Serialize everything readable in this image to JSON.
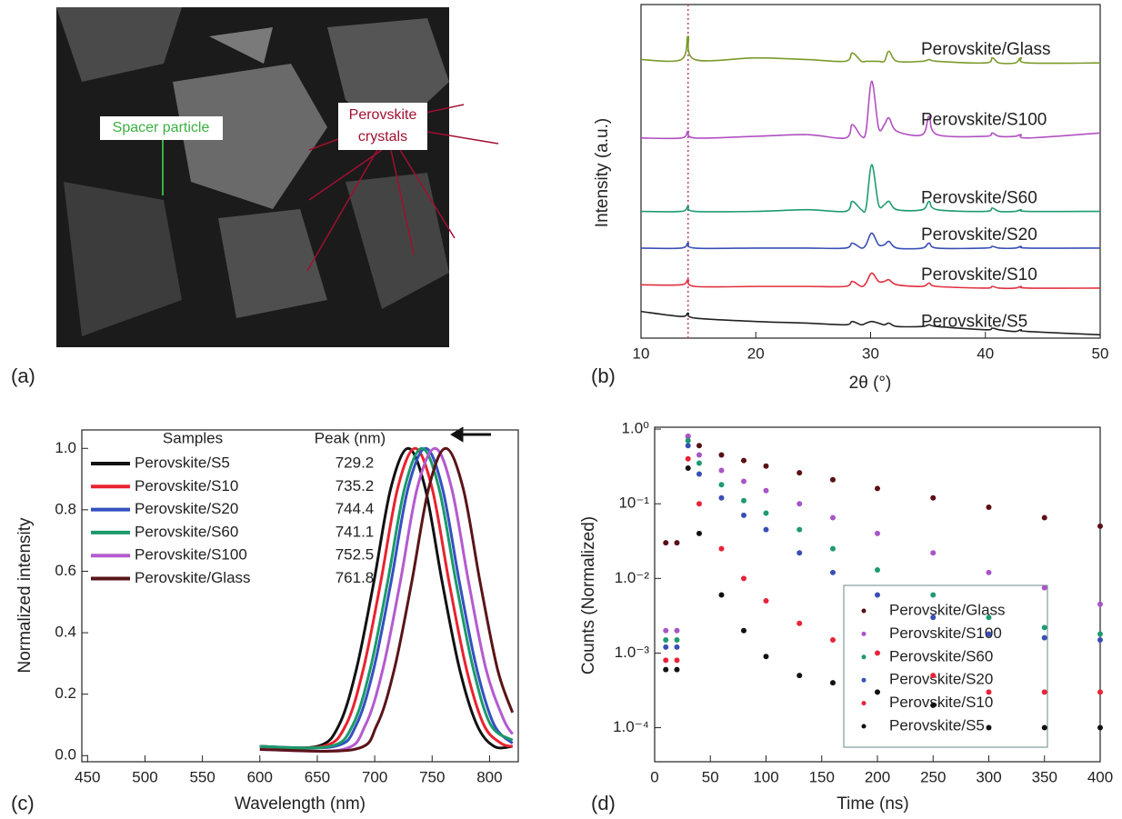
{
  "image_panel": {
    "panel_label": "(a)",
    "annotations": {
      "spacer": "Spacer particle",
      "crystals": [
        "Perovskite",
        "crystals"
      ]
    }
  },
  "chart_data": [
    {
      "type": "line",
      "panel_label": "(b)",
      "x_label": "2θ (°)",
      "y_label": "Intensity (a.u.)",
      "xlim": [
        10,
        50
      ],
      "xticks": [
        10,
        20,
        30,
        40,
        50
      ],
      "ylim": [
        0,
        100
      ],
      "reference_line_x": 14.1,
      "x": [
        10,
        13.5,
        14.1,
        14.7,
        20,
        24.5,
        27.8,
        28.4,
        29.2,
        29.6,
        30.1,
        30.7,
        31.2,
        31.6,
        32.3,
        34.5,
        35.1,
        35.8,
        40,
        40.6,
        41.2,
        42.6,
        43.1,
        43.7,
        50
      ],
      "series": [
        {
          "name": "Perovskite/Glass",
          "color": "#7a9a2a",
          "values": [
            83.5,
            83.5,
            90.5,
            83.5,
            84,
            83.5,
            83,
            85.5,
            83,
            83,
            83,
            83,
            83,
            86,
            83,
            83,
            83.5,
            83,
            82.5,
            84,
            82.5,
            82.5,
            84,
            82.5,
            82.5
          ]
        },
        {
          "name": "Perovskite/S100",
          "color": "#b050c0",
          "values": [
            60,
            60,
            62,
            60,
            60.5,
            61,
            60,
            64,
            60.5,
            62,
            77,
            63,
            64,
            66,
            62,
            61,
            66.5,
            61,
            60.5,
            61.5,
            60.5,
            60.5,
            61,
            60,
            61.5
          ]
        },
        {
          "name": "Perovskite/S60",
          "color": "#1f9a73",
          "values": [
            38,
            38,
            39.5,
            38,
            38,
            38.5,
            38,
            41,
            38.5,
            39,
            52,
            40,
            40,
            41,
            38.5,
            38.5,
            41,
            38.5,
            38,
            39,
            38,
            38,
            38.5,
            38,
            38
          ]
        },
        {
          "name": "Perovskite/S20",
          "color": "#3a4fb5",
          "values": [
            27,
            27,
            28.5,
            27,
            27,
            27,
            27,
            28.5,
            27,
            28,
            31.5,
            28,
            28,
            29,
            27,
            27,
            28.5,
            27,
            27,
            27.5,
            27,
            27,
            27.5,
            27,
            27
          ]
        },
        {
          "name": "Perovskite/S10",
          "color": "#e03040",
          "values": [
            16,
            16,
            17.5,
            15.5,
            15.5,
            15.5,
            15.5,
            17,
            15.5,
            16.5,
            19.5,
            17,
            17,
            17.5,
            16,
            15.5,
            16.5,
            15.5,
            15,
            15.5,
            15,
            15,
            15.5,
            15,
            15
          ]
        },
        {
          "name": "Perovskite/S5",
          "color": "#222222",
          "values": [
            8,
            6.5,
            7.5,
            6,
            5,
            4.5,
            4,
            5,
            4,
            4.5,
            5,
            4.5,
            4,
            4.5,
            3.5,
            3.5,
            4,
            3.5,
            2.5,
            3,
            2.5,
            2,
            2.5,
            2,
            1
          ]
        }
      ]
    },
    {
      "type": "line",
      "panel_label": "(c)",
      "x_label": "Wavelength (nm)",
      "y_label": "Normalized intensity",
      "xlim": [
        445,
        825
      ],
      "xticks": [
        450,
        500,
        550,
        600,
        650,
        700,
        750,
        800
      ],
      "ylim": [
        -0.02,
        1.06
      ],
      "yticks": [
        {
          "value": 0,
          "label": "0.0"
        },
        {
          "value": 0.2,
          "label": "0.2"
        },
        {
          "value": 0.4,
          "label": "0.4"
        },
        {
          "value": 0.6,
          "label": "0.6"
        },
        {
          "value": 0.8,
          "label": "0.8"
        },
        {
          "value": 1,
          "label": "1.0"
        }
      ],
      "legend_headers": [
        "Samples",
        "Peak (nm)"
      ],
      "series": [
        {
          "name": "Perovskite/S5",
          "color": "#111111",
          "peak": 729.2,
          "x": [
            600,
            650,
            669,
            684,
            699,
            714,
            729.2,
            744,
            759,
            774,
            789,
            804,
            820
          ],
          "values": [
            0.03,
            0.03,
            0.1,
            0.28,
            0.56,
            0.87,
            1,
            0.87,
            0.56,
            0.28,
            0.1,
            0.03,
            0.03
          ]
        },
        {
          "name": "Perovskite/S10",
          "color": "#e8232f",
          "peak": 735.2,
          "x": [
            600,
            655,
            675,
            690,
            705,
            720,
            735.2,
            750,
            765,
            780,
            795,
            810,
            820
          ],
          "values": [
            0.03,
            0.03,
            0.1,
            0.28,
            0.56,
            0.87,
            1,
            0.87,
            0.56,
            0.28,
            0.1,
            0.04,
            0.03
          ]
        },
        {
          "name": "Perovskite/S20",
          "color": "#3550c0",
          "peak": 744.4,
          "x": [
            600,
            665,
            684,
            699,
            714,
            729,
            744.4,
            759,
            774,
            789,
            804,
            820
          ],
          "values": [
            0.03,
            0.03,
            0.1,
            0.28,
            0.56,
            0.87,
            1,
            0.87,
            0.56,
            0.28,
            0.1,
            0.04
          ]
        },
        {
          "name": "Perovskite/S60",
          "color": "#1a9a6a",
          "peak": 741.1,
          "x": [
            600,
            661,
            681,
            696,
            711,
            726,
            741.1,
            756,
            771,
            786,
            801,
            820
          ],
          "values": [
            0.03,
            0.03,
            0.1,
            0.28,
            0.56,
            0.87,
            1,
            0.87,
            0.56,
            0.28,
            0.1,
            0.05
          ]
        },
        {
          "name": "Perovskite/S100",
          "color": "#b45ad0",
          "peak": 752.5,
          "x": [
            600,
            672,
            692,
            707,
            722,
            737,
            752.5,
            767,
            782,
            797,
            812,
            820
          ],
          "values": [
            0.02,
            0.02,
            0.1,
            0.28,
            0.56,
            0.87,
            1,
            0.87,
            0.56,
            0.28,
            0.12,
            0.07
          ]
        },
        {
          "name": "Perovskite/Glass",
          "color": "#5a1418",
          "peak": 761.8,
          "x": [
            600,
            682,
            702,
            717,
            732,
            747,
            761.8,
            777,
            792,
            807,
            820
          ],
          "values": [
            0.02,
            0.02,
            0.1,
            0.28,
            0.56,
            0.87,
            1,
            0.87,
            0.56,
            0.28,
            0.14
          ]
        }
      ]
    },
    {
      "type": "scatter",
      "panel_label": "(d)",
      "x_label": "Time (ns)",
      "y_label": "Counts (Normalized)",
      "log_y": true,
      "xlim": [
        0,
        400
      ],
      "xticks": [
        0,
        50,
        100,
        150,
        200,
        250,
        300,
        350,
        400
      ],
      "ylim": [
        3.5e-05,
        1.06
      ],
      "yticks": [
        {
          "value": 1,
          "label": "1.0⁰"
        },
        {
          "value": 0.1,
          "label": "10⁻¹"
        },
        {
          "value": 0.01,
          "label": "1.0⁻²"
        },
        {
          "value": 0.001,
          "label": "1.0⁻³"
        },
        {
          "value": 0.0001,
          "label": "1.0⁻⁴"
        }
      ],
      "x": [
        10,
        20,
        30,
        40,
        60,
        80,
        100,
        130,
        160,
        200,
        250,
        300,
        350,
        400
      ],
      "series": [
        {
          "name": "Perovskite/Glass",
          "color": "#5a0f14",
          "values": [
            0.03,
            0.03,
            0.8,
            0.6,
            0.45,
            0.38,
            0.32,
            0.26,
            0.21,
            0.16,
            0.12,
            0.09,
            0.065,
            0.05
          ]
        },
        {
          "name": "Perovskite/S100",
          "color": "#a855c8",
          "values": [
            0.002,
            0.002,
            0.8,
            0.45,
            0.28,
            0.2,
            0.15,
            0.1,
            0.065,
            0.04,
            0.022,
            0.012,
            0.0075,
            0.0045
          ]
        },
        {
          "name": "Perovskite/S60",
          "color": "#1f9a73",
          "values": [
            0.0015,
            0.0015,
            0.7,
            0.35,
            0.18,
            0.11,
            0.075,
            0.045,
            0.025,
            0.013,
            0.006,
            0.003,
            0.0022,
            0.0018
          ]
        },
        {
          "name": "Perovskite/S20",
          "color": "#3a4fb5",
          "values": [
            0.0012,
            0.0012,
            0.6,
            0.25,
            0.12,
            0.07,
            0.045,
            0.022,
            0.012,
            0.006,
            0.003,
            0.0018,
            0.0016,
            0.0015
          ]
        },
        {
          "name": "Perovskite/S10",
          "color": "#e8233a",
          "values": [
            0.0008,
            0.0008,
            0.4,
            0.1,
            0.025,
            0.01,
            0.005,
            0.0025,
            0.0015,
            0.001,
            0.0005,
            0.0003,
            0.0003,
            0.0003
          ]
        },
        {
          "name": "Perovskite/S5",
          "color": "#111111",
          "values": [
            0.0006,
            0.0006,
            0.3,
            0.04,
            0.006,
            0.002,
            0.0009,
            0.0005,
            0.0004,
            0.0003,
            0.0002,
            0.0001,
            0.0001,
            0.0001
          ]
        }
      ]
    }
  ]
}
